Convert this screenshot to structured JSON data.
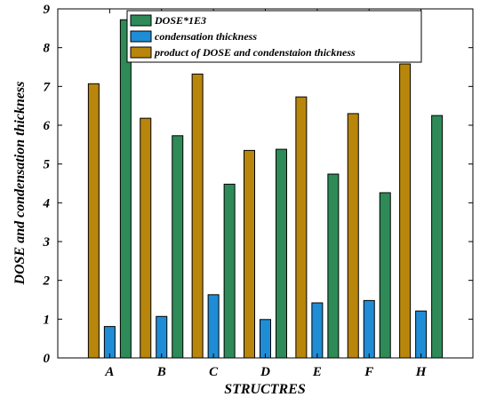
{
  "chart_data": {
    "type": "bar",
    "categories": [
      "A",
      "B",
      "C",
      "D",
      "E",
      "F",
      "H"
    ],
    "series": [
      {
        "name": "product of DOSE and condenstaion thickness",
        "color": "#b8860b",
        "values": [
          7.07,
          6.18,
          7.32,
          5.35,
          6.73,
          6.3,
          7.58
        ]
      },
      {
        "name": "condensation thickness",
        "color": "#1f8dd6",
        "values": [
          0.81,
          1.07,
          1.63,
          0.99,
          1.42,
          1.48,
          1.21
        ]
      },
      {
        "name": "DOSE*1E3",
        "color": "#2e8b57",
        "values": [
          8.72,
          5.73,
          4.48,
          5.38,
          4.74,
          4.26,
          6.25
        ]
      }
    ],
    "legend_order": [
      "DOSE*1E3",
      "condensation thickness",
      "product of DOSE and condenstaion thickness"
    ],
    "xlabel": "STRUCTRES",
    "ylabel": "DOSE and condensation thickness",
    "ylim": [
      0,
      9
    ],
    "yticks": [
      "0",
      "1",
      "2",
      "3",
      "4",
      "5",
      "6",
      "7",
      "8",
      "9"
    ],
    "grid": false,
    "legend_position": "top"
  }
}
